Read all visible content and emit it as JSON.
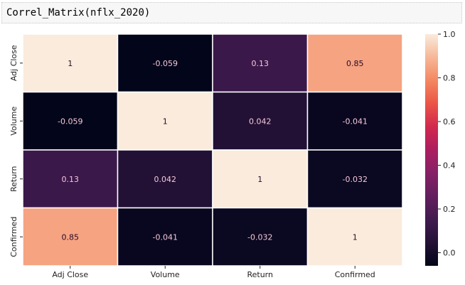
{
  "code": {
    "function_name": "Correl_Matrix",
    "open_paren": "(",
    "argument": "nflx_2020",
    "close_paren": ")"
  },
  "chart_data": {
    "type": "heatmap",
    "title": "",
    "xlabel": "",
    "ylabel": "",
    "x_categories": [
      "Adj Close",
      "Volume",
      "Return",
      "Confirmed"
    ],
    "y_categories": [
      "Adj Close",
      "Volume",
      "Return",
      "Confirmed"
    ],
    "matrix": [
      [
        1,
        -0.059,
        0.13,
        0.85
      ],
      [
        -0.059,
        1,
        0.042,
        -0.041
      ],
      [
        0.13,
        0.042,
        1,
        -0.032
      ],
      [
        0.85,
        -0.041,
        -0.032,
        1
      ]
    ],
    "annotations": [
      [
        "1",
        "-0.059",
        "0.13",
        "0.85"
      ],
      [
        "-0.059",
        "1",
        "0.042",
        "-0.041"
      ],
      [
        "0.13",
        "0.042",
        "1",
        "-0.032"
      ],
      [
        "0.85",
        "-0.041",
        "-0.032",
        "1"
      ]
    ],
    "colormap": "rocket",
    "colorbar": {
      "vmin": -0.06,
      "vmax": 1.0,
      "ticks": [
        0.0,
        0.2,
        0.4,
        0.6,
        0.8,
        1.0
      ],
      "tick_labels": [
        "0.0",
        "0.2",
        "0.4",
        "0.6",
        "0.8",
        "1.0"
      ]
    },
    "cell_separator_color": "#ffffff",
    "annotation_dark_text_color": "#2a0a24",
    "annotation_light_text_color": "#f4c8d8"
  }
}
